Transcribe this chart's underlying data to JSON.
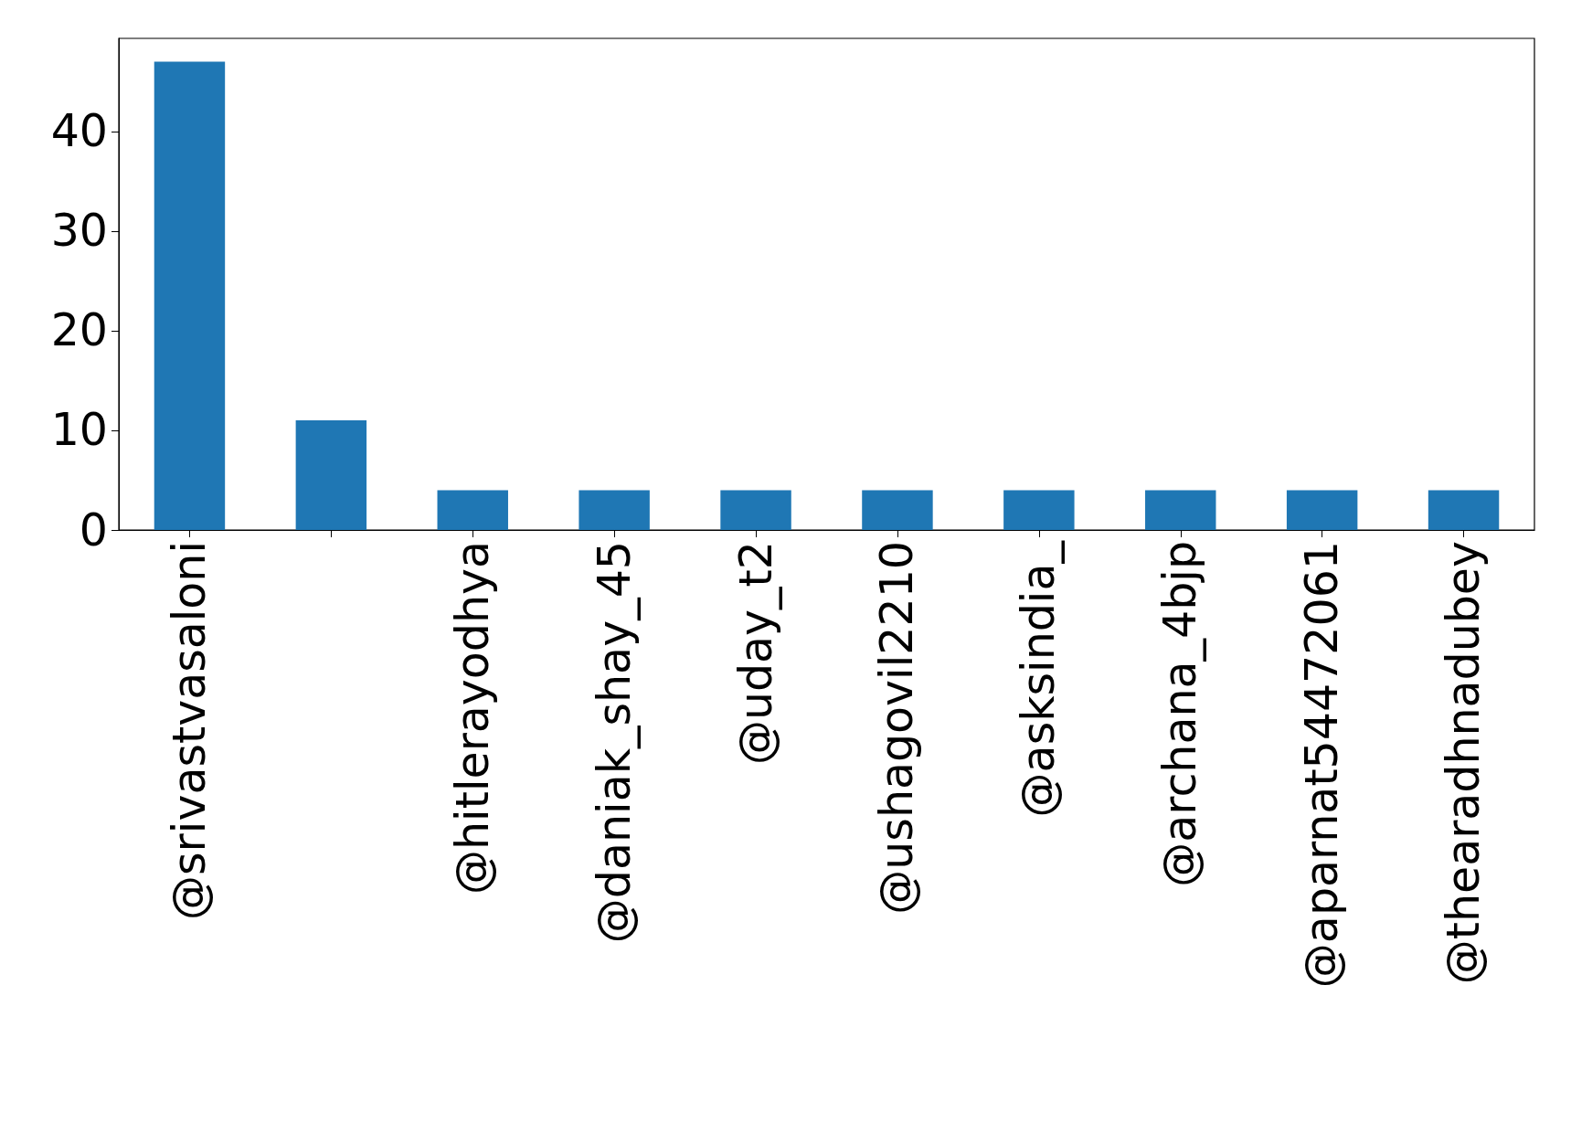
{
  "chart_data": {
    "type": "bar",
    "categories": [
      "@srivastvasaloni",
      null,
      "@hitlerayodhya",
      "@daniak_shay_45",
      "@uday_t2",
      "@ushagovil2210",
      "@asksindia_",
      "@archana_4bjp",
      "@aparnat54472061",
      "@thearadhnadubey"
    ],
    "values": [
      47,
      11,
      4,
      4,
      4,
      4,
      4,
      4,
      4,
      4
    ],
    "color": "#1f77b4",
    "ylim": [
      0,
      49.35
    ],
    "yticks": [
      0,
      10,
      20,
      30,
      40
    ],
    "grid": false
  }
}
